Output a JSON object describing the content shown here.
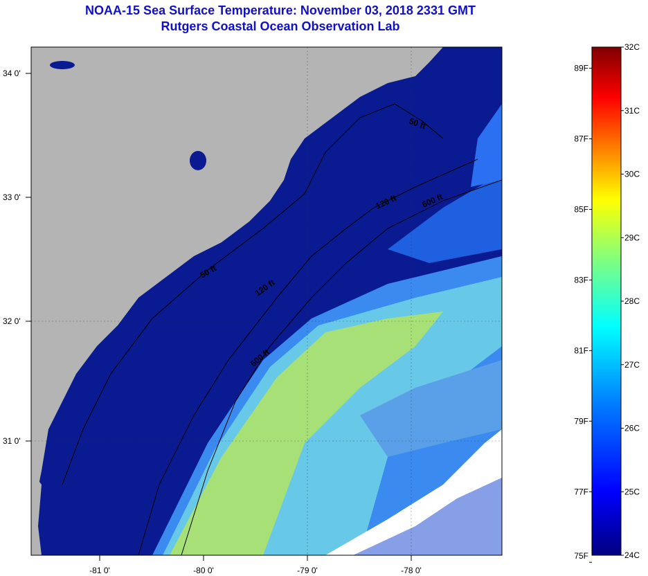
{
  "title": "NOAA-15 Sea Surface Temperature:  November 03, 2018 2331 GMT",
  "subtitle": "Rutgers Coastal Ocean Observation Lab",
  "map": {
    "lon_labels": [
      "-81 0'",
      "-80 0'",
      "-79 0'",
      "-78 0'"
    ],
    "lat_labels": [
      "34 0'",
      "33 0'",
      "32 0'",
      "31 0'"
    ],
    "contour_labels": [
      "50 ft",
      "120 ft",
      "600 ft",
      "50 ft",
      "120 ft",
      "600 ft"
    ],
    "colors": {
      "land": "#b4b4b4",
      "cold": "#0a1a8c",
      "warm": "#b0e850",
      "cloud": "#ffffff"
    }
  },
  "colorbar": {
    "celsius_labels": [
      "32C",
      "31C",
      "30C",
      "29C",
      "28C",
      "27C",
      "26C",
      "25C",
      "24C"
    ],
    "fahrenheit_labels": [
      "89F",
      "87F",
      "85F",
      "83F",
      "81F",
      "79F",
      "77F",
      "75F"
    ],
    "celsius_range": [
      24,
      32
    ],
    "fahrenheit_range": [
      75,
      89
    ],
    "stops": [
      "#00007f",
      "#0000ff",
      "#007fff",
      "#00ffff",
      "#7fff7f",
      "#ffff00",
      "#ff7f00",
      "#ff0000",
      "#7f0000"
    ]
  }
}
